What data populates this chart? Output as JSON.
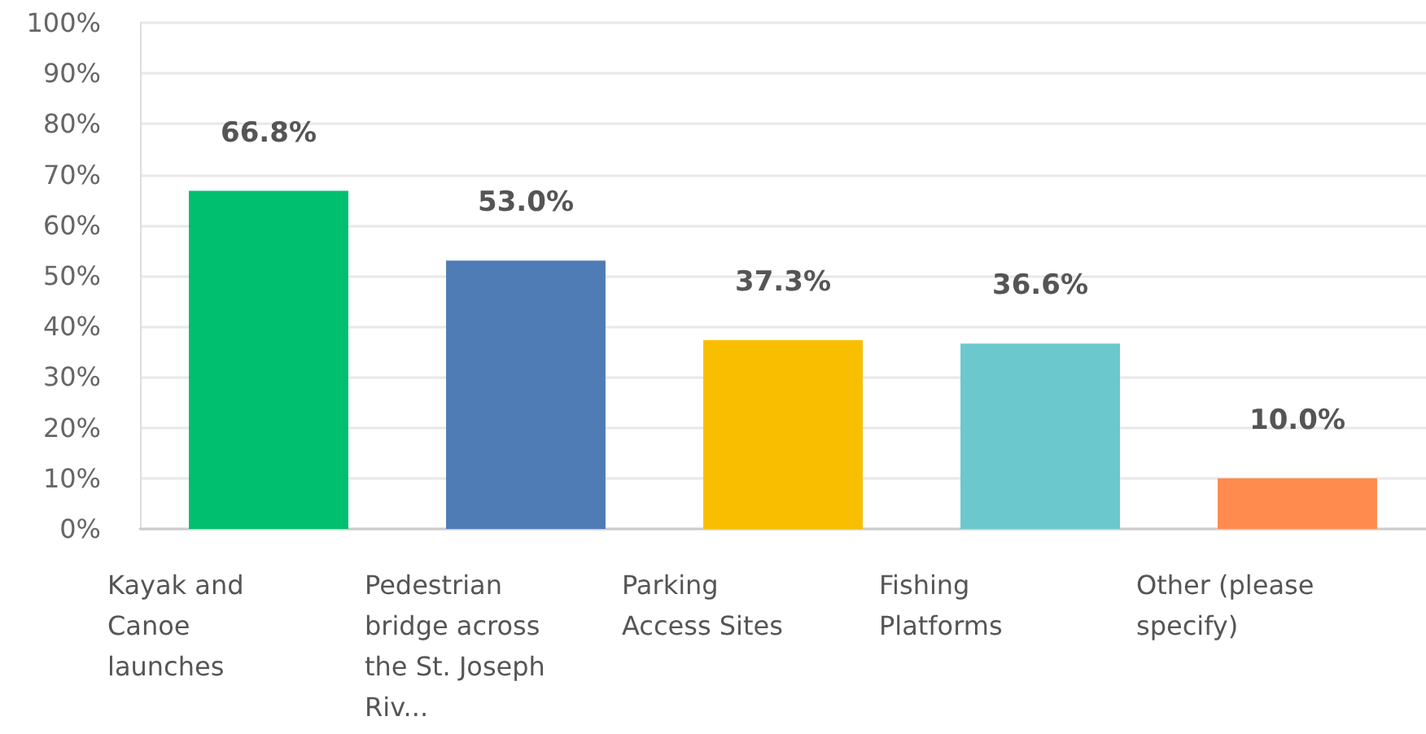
{
  "chart_data": {
    "type": "bar",
    "categories": [
      "Kayak and Canoe launches",
      "Pedestrian bridge across the St. Joseph Riv...",
      "Parking Access Sites",
      "Fishing Platforms",
      "Other (please specify)"
    ],
    "values": [
      66.8,
      53.0,
      37.3,
      36.6,
      10.0
    ],
    "colors": [
      "#00bf6f",
      "#507cb6",
      "#f9be00",
      "#6bc8cd",
      "#ff8b4f"
    ],
    "value_labels": [
      "66.8%",
      "53.0%",
      "37.3%",
      "36.6%",
      "10.0%"
    ],
    "ylim": [
      0,
      100
    ],
    "yticks": [
      {
        "value": 0,
        "label": "0%"
      },
      {
        "value": 10,
        "label": "10%"
      },
      {
        "value": 20,
        "label": "20%"
      },
      {
        "value": 30,
        "label": "30%"
      },
      {
        "value": 40,
        "label": "40%"
      },
      {
        "value": 50,
        "label": "50%"
      },
      {
        "value": 60,
        "label": "60%"
      },
      {
        "value": 70,
        "label": "70%"
      },
      {
        "value": 80,
        "label": "80%"
      },
      {
        "value": 90,
        "label": "90%"
      },
      {
        "value": 100,
        "label": "100%"
      }
    ],
    "grid": "y"
  }
}
